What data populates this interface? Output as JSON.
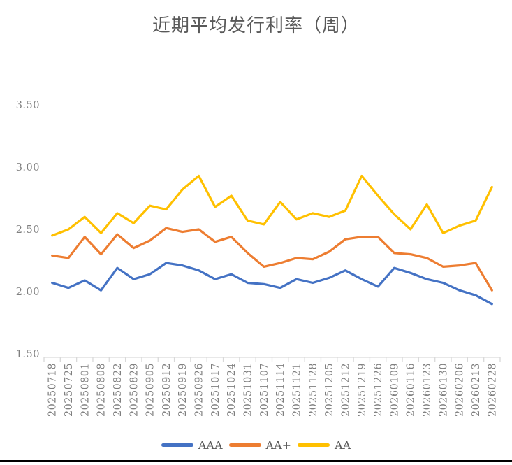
{
  "chart_data": {
    "type": "line",
    "title": "近期平均发行利率（周）",
    "x": [
      "20250718",
      "20250725",
      "20250801",
      "20250808",
      "20250822",
      "20250829",
      "20250905",
      "20250912",
      "20250919",
      "20250926",
      "20251017",
      "20251024",
      "20251031",
      "20251107",
      "20251114",
      "20251121",
      "20251128",
      "20251205",
      "20251212",
      "20251219",
      "20251226",
      "20260109",
      "20260116",
      "20260123",
      "20260130",
      "20260206",
      "20260213",
      "20260228"
    ],
    "series": [
      {
        "name": "AAA",
        "color": "#4472C4",
        "values": [
          2.07,
          2.03,
          2.09,
          2.01,
          2.19,
          2.1,
          2.14,
          2.23,
          2.21,
          2.17,
          2.1,
          2.14,
          2.07,
          2.06,
          2.03,
          2.1,
          2.07,
          2.11,
          2.17,
          2.1,
          2.04,
          2.19,
          2.15,
          2.1,
          2.07,
          2.01,
          1.97,
          1.9
        ]
      },
      {
        "name": "AA+",
        "color": "#ED7D31",
        "values": [
          2.29,
          2.27,
          2.44,
          2.3,
          2.46,
          2.35,
          2.41,
          2.51,
          2.48,
          2.5,
          2.4,
          2.44,
          2.31,
          2.2,
          2.23,
          2.27,
          2.26,
          2.32,
          2.42,
          2.44,
          2.44,
          2.31,
          2.3,
          2.27,
          2.2,
          2.21,
          2.23,
          2.01
        ]
      },
      {
        "name": "AA",
        "color": "#FFC000",
        "values": [
          2.45,
          2.5,
          2.6,
          2.47,
          2.63,
          2.55,
          2.69,
          2.66,
          2.82,
          2.93,
          2.68,
          2.77,
          2.57,
          2.54,
          2.72,
          2.58,
          2.63,
          2.6,
          2.65,
          2.93,
          2.77,
          2.62,
          2.5,
          2.7,
          2.47,
          2.53,
          2.57,
          2.84
        ]
      }
    ],
    "ylim": [
      1.5,
      3.5
    ],
    "y_ticks": [
      "3.50",
      "3.00",
      "2.50",
      "2.00",
      "1.50"
    ],
    "grid": false,
    "legend_position": "bottom",
    "colors": {
      "background": "#ffffff",
      "axis_line": "#d9d9d9",
      "tick_label": "#7f7f7f",
      "title_text": "#595959",
      "legend_text": "#595959",
      "bottom_rule": "#000000"
    }
  }
}
